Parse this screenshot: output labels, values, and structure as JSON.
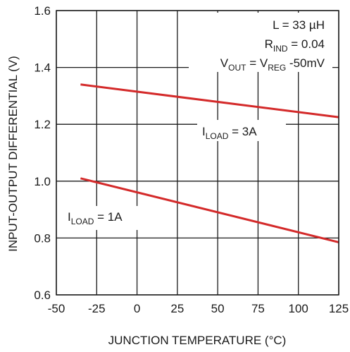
{
  "chart_data": {
    "type": "line",
    "xlabel": "JUNCTION TEMPERATURE (°C)",
    "ylabel": "INPUT-OUTPUT DIFFERENTIAL (V)",
    "xlim": [
      -50,
      125
    ],
    "ylim": [
      0.6,
      1.6
    ],
    "x_ticks": [
      "-50",
      "-25",
      "0",
      "25",
      "50",
      "75",
      "100",
      "125"
    ],
    "y_ticks": [
      "0.6",
      "0.8",
      "1.0",
      "1.2",
      "1.4",
      "1.6"
    ],
    "grid": true,
    "line_color": "#d42a2a",
    "series": [
      {
        "name": "ILOAD = 3A",
        "x": [
          -35,
          125
        ],
        "y": [
          1.34,
          1.225
        ]
      },
      {
        "name": "ILOAD = 1A",
        "x": [
          -35,
          125
        ],
        "y": [
          1.01,
          0.785
        ]
      }
    ],
    "annotations": {
      "l_text": "L = 33 µH",
      "rind_main": "R",
      "rind_sub": "IND",
      "rind_rest": " = 0.04",
      "vout_main": "V",
      "vout_sub": "OUT",
      "vout_mid": " = V",
      "vreg_sub": "REG",
      "vout_rest": " -50mV",
      "iload3_main": "I",
      "iload3_sub": "LOAD",
      "iload3_rest": " = 3A",
      "iload1_main": "I",
      "iload1_sub": "LOAD",
      "iload1_rest": " = 1A"
    }
  }
}
